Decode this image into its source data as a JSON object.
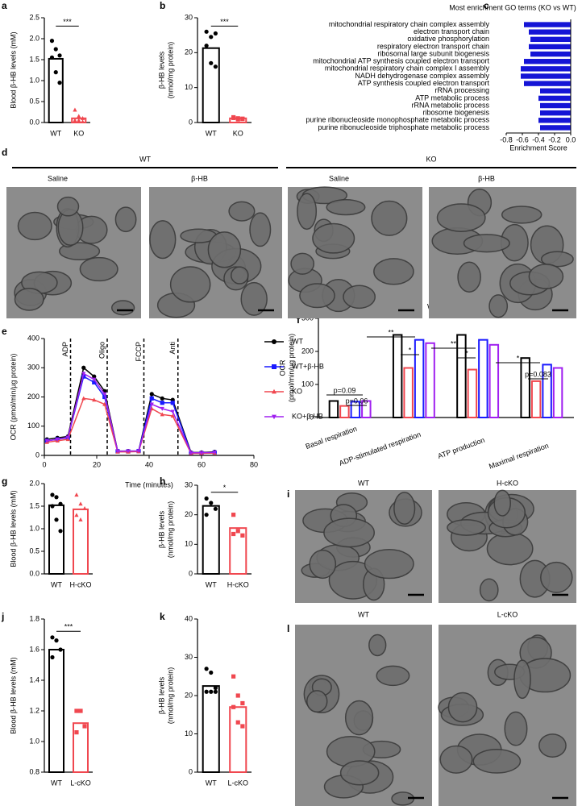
{
  "chart_data": [
    {
      "type": "bar",
      "label": "a",
      "ylabel": "Blood β-HB levels (mM)",
      "categories": [
        "WT",
        "KO"
      ],
      "values": [
        1.52,
        0.1
      ],
      "colors": [
        "#000000",
        "#f0474f"
      ],
      "markers": [
        "circle",
        "triangle"
      ],
      "points": [
        [
          1.95,
          1.75,
          1.6,
          1.55,
          1.2,
          0.95
        ],
        [
          0.3,
          0.15,
          0.1,
          0.05,
          0.05,
          0.02
        ]
      ],
      "ylim": [
        0,
        2.5
      ],
      "yticks": [
        {
          "value": 0,
          "label": "0.0"
        },
        0.5,
        {
          "value": 1,
          "label": "1.0"
        },
        1.5,
        {
          "value": 2,
          "label": "2.0"
        },
        2.5
      ],
      "significance": "***"
    },
    {
      "type": "bar",
      "label": "b",
      "ylabel": [
        "β-HB levels",
        "(nmol/mg protein)"
      ],
      "categories": [
        "WT",
        "KO"
      ],
      "values": [
        21.3,
        1.2
      ],
      "colors": [
        "#000000",
        "#f0474f"
      ],
      "markers": [
        "circle",
        "square"
      ],
      "points": [
        [
          26,
          24.5,
          25.5,
          22,
          17,
          16
        ],
        [
          1.5,
          1.2,
          1,
          1.3,
          0.9,
          1.1
        ]
      ],
      "ylim": [
        0,
        30
      ],
      "yticks": [
        0,
        10,
        20,
        30
      ],
      "significance": "***"
    },
    {
      "type": "hbar",
      "label": "c",
      "title": "Most enrichment GO terms (KO vs WT)",
      "xlabel": "Enrichment Score",
      "color": "#1515d6",
      "categories": [
        "mitochondrial respiratory chain complex assembly",
        "electron transport chain",
        "oxidative phosphorylation",
        "respiratory electron transport chain",
        "ribosomal large subunit biogenesis",
        "mitochondrial ATP synthesis coupled electron transport",
        "mitochondrial respiratory chain complex I assembly",
        "NADH dehydrogenase complex assembly",
        "ATP synthesis coupled electron transport",
        "rRNA processing",
        "ATP metabolic process",
        "rRNA metabolic process",
        "ribosome biogenesis",
        "purine ribonucleoside monophosphate metabolic process",
        "purine ribonucleoside triphosphate metabolic process"
      ],
      "values": [
        -0.58,
        -0.52,
        -0.5,
        -0.52,
        -0.5,
        -0.58,
        -0.62,
        -0.62,
        -0.58,
        -0.38,
        -0.4,
        -0.38,
        -0.38,
        -0.4,
        -0.38
      ],
      "xlim": [
        -0.8,
        0
      ],
      "xticks": [
        -0.8,
        -0.6,
        -0.4,
        -0.2,
        {
          "value": 0,
          "label": "0.0"
        }
      ]
    },
    {
      "type": "line",
      "label": "e",
      "xlabel": "Time (minutes)",
      "ylabel": "OCR (pmol/min/µg protein)",
      "x": [
        1,
        5,
        9,
        15,
        19,
        23,
        28,
        32,
        36,
        41,
        45,
        49,
        56,
        60,
        65
      ],
      "series": [
        {
          "name": "WT",
          "color": "#000000",
          "marker": "circle",
          "values": [
            55,
            60,
            65,
            300,
            270,
            220,
            15,
            15,
            15,
            210,
            195,
            190,
            10,
            10,
            12
          ]
        },
        {
          "name": "WT+β-HB",
          "color": "#1a1aff",
          "marker": "square",
          "values": [
            50,
            55,
            60,
            270,
            250,
            200,
            14,
            14,
            15,
            195,
            180,
            180,
            8,
            8,
            10
          ]
        },
        {
          "name": "KO",
          "color": "#f0474f",
          "marker": "triangle",
          "values": [
            45,
            50,
            55,
            195,
            190,
            175,
            12,
            12,
            13,
            160,
            140,
            135,
            7,
            7,
            8
          ]
        },
        {
          "name": "KO+β-HB",
          "color": "#a020f0",
          "marker": "triangle-down",
          "values": [
            50,
            55,
            62,
            280,
            260,
            210,
            14,
            15,
            15,
            175,
            160,
            150,
            9,
            9,
            10
          ]
        }
      ],
      "events": [
        {
          "label": "ADP",
          "x": 10
        },
        {
          "label": "Oligo",
          "x": 24
        },
        {
          "label": "FCCP",
          "x": 38
        },
        {
          "label": "Anti",
          "x": 51
        }
      ],
      "xlim": [
        0,
        80
      ],
      "xticks": [
        0,
        20,
        40,
        60,
        80
      ],
      "ylim": [
        0,
        400
      ],
      "yticks": [
        0,
        100,
        200,
        300,
        400
      ]
    },
    {
      "type": "grouped_bar",
      "label": "f",
      "ylabel": [
        "OCR",
        "(pmol/min/µg protein)"
      ],
      "categories": [
        "Basal respiration",
        "ADP-stimulated respiration",
        "ATP production",
        "Maximal respiration"
      ],
      "series": [
        {
          "name": "WT",
          "color": "#000000",
          "marker": "circle",
          "values": [
            50,
            250,
            250,
            180
          ]
        },
        {
          "name": "KO",
          "color": "#f0474f",
          "marker": "triangle",
          "values": [
            35,
            150,
            145,
            110
          ]
        },
        {
          "name": "WT+β-HB",
          "color": "#1a1aff",
          "marker": "square",
          "values": [
            48,
            235,
            235,
            160
          ]
        },
        {
          "name": "KO+β-HB",
          "color": "#a020f0",
          "marker": "triangle-down",
          "values": [
            50,
            225,
            220,
            150
          ]
        }
      ],
      "annotations": [
        "p=0.09",
        "p=0.06",
        "**",
        "*",
        "**",
        "*",
        "*",
        "p=0.083"
      ],
      "ylim": [
        0,
        300
      ],
      "yticks": [
        0,
        100,
        200,
        300
      ]
    },
    {
      "type": "bar",
      "label": "g",
      "ylabel": "Blood β-HB levels (mM)",
      "categories": [
        "WT",
        "H-cKO"
      ],
      "values": [
        1.52,
        1.43
      ],
      "colors": [
        "#000000",
        "#f0474f"
      ],
      "markers": [
        "circle",
        "triangle"
      ],
      "points": [
        [
          1.75,
          1.7,
          1.55,
          1.5,
          1.2,
          0.95
        ],
        [
          1.75,
          1.55,
          1.45,
          1.3,
          1.2
        ]
      ],
      "ylim": [
        0,
        2
      ],
      "yticks": [
        {
          "value": 0,
          "label": "0.0"
        },
        0.5,
        {
          "value": 1,
          "label": "1.0"
        },
        1.5,
        {
          "value": 2,
          "label": "2.0"
        }
      ]
    },
    {
      "type": "bar",
      "label": "h",
      "ylabel": [
        "β-HB levels",
        "(nmol/mg protein)"
      ],
      "categories": [
        "WT",
        "H-cKO"
      ],
      "values": [
        23,
        15.5
      ],
      "colors": [
        "#000000",
        "#f0474f"
      ],
      "markers": [
        "circle",
        "square"
      ],
      "points": [
        [
          25.5,
          24,
          22,
          20
        ],
        [
          20,
          14.5,
          13,
          13.5
        ]
      ],
      "ylim": [
        0,
        30
      ],
      "yticks": [
        0,
        10,
        20,
        30
      ],
      "significance": "*"
    },
    {
      "type": "bar",
      "label": "j",
      "ylabel": "Blood β-HB levels (mM)",
      "categories": [
        "WT",
        "L-cKO"
      ],
      "values": [
        1.6,
        1.12
      ],
      "colors": [
        "#000000",
        "#f0474f"
      ],
      "markers": [
        "circle",
        "square"
      ],
      "points": [
        [
          1.68,
          1.66,
          1.6,
          1.55
        ],
        [
          1.2,
          1.2,
          1.1,
          1.06
        ]
      ],
      "ylim": [
        0.8,
        1.8
      ],
      "yticks": [
        0.8,
        {
          "value": 1,
          "label": "1.0"
        },
        1.2,
        1.4,
        1.6,
        1.8
      ],
      "significance": "***"
    },
    {
      "type": "bar",
      "label": "k",
      "ylabel": [
        "β-HB levels",
        "(nmol/mg protein)"
      ],
      "categories": [
        "WT",
        "L-cKO"
      ],
      "values": [
        22.5,
        17
      ],
      "colors": [
        "#000000",
        "#f0474f"
      ],
      "markers": [
        "circle",
        "square"
      ],
      "points": [
        [
          27,
          26,
          22,
          21,
          21,
          21
        ],
        [
          25,
          20,
          18,
          17,
          13,
          12
        ]
      ],
      "ylim": [
        0,
        40
      ],
      "yticks": [
        0,
        10,
        20,
        30,
        40
      ]
    }
  ],
  "image_panels": [
    {
      "label": "d",
      "groups": [
        {
          "title": "WT",
          "conditions": [
            "Saline",
            "β-HB"
          ]
        },
        {
          "title": "KO",
          "conditions": [
            "Saline",
            "β-HB"
          ]
        }
      ]
    },
    {
      "label": "i",
      "conditions": [
        "WT",
        "H-cKO"
      ]
    },
    {
      "label": "l",
      "conditions": [
        "WT",
        "L-cKO"
      ]
    }
  ]
}
